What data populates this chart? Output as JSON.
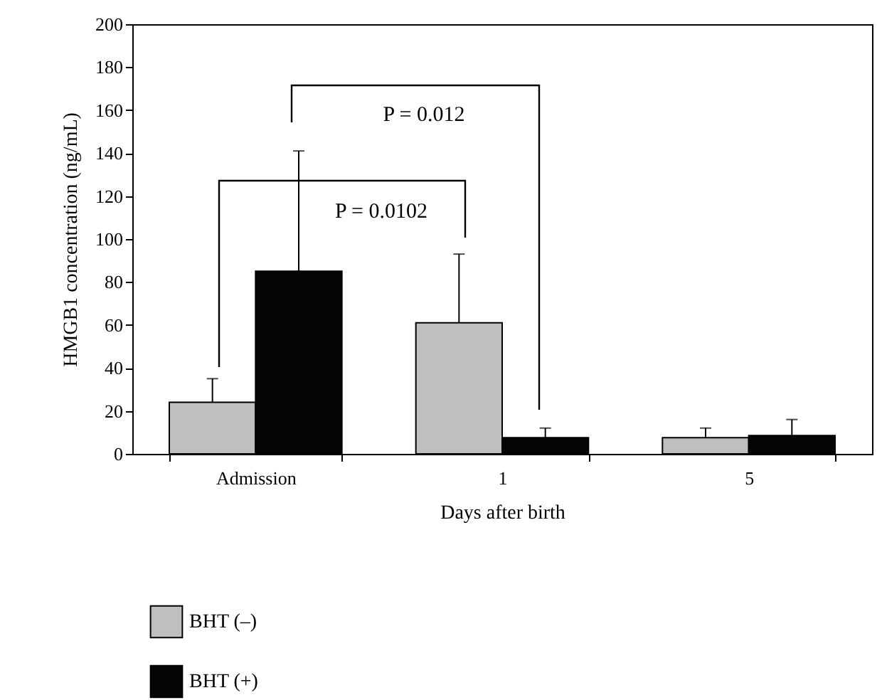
{
  "chart_data": {
    "type": "bar",
    "xlabel": "Days after birth",
    "ylabel": "HMGB1 concentration (ng/mL)",
    "categories": [
      "Admission",
      "1",
      "5"
    ],
    "series": [
      {
        "name": "BHT (–)",
        "color": "#bfbfbf",
        "values": [
          24,
          61,
          7.5
        ],
        "errors": [
          [
            24,
            35
          ],
          [
            61,
            93
          ],
          [
            7.5,
            12
          ]
        ]
      },
      {
        "name": "BHT (+)",
        "color": "#050505",
        "values": [
          85,
          7.5,
          8.5
        ],
        "errors": [
          [
            85,
            141
          ],
          [
            7.5,
            12
          ],
          [
            8.5,
            16
          ]
        ]
      }
    ],
    "ylim": [
      0,
      200
    ],
    "yticks": [
      0,
      20,
      40,
      60,
      80,
      100,
      120,
      140,
      160,
      180,
      200
    ],
    "grid": false,
    "legend": "bottom left",
    "annotations": [
      "P = 0.012",
      "P = 0.0102"
    ]
  }
}
